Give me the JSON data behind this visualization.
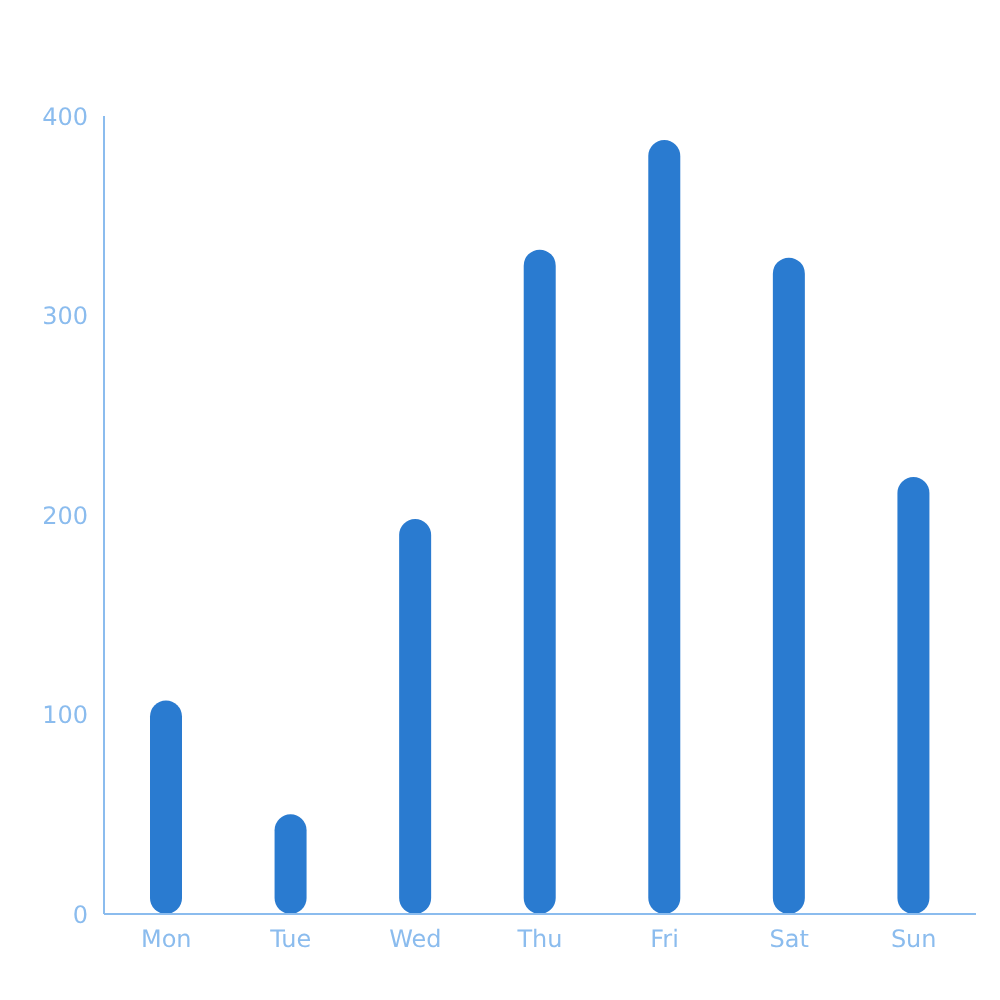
{
  "chart_data": {
    "type": "bar",
    "categories": [
      "Mon",
      "Tue",
      "Wed",
      "Thu",
      "Fri",
      "Sat",
      "Sun"
    ],
    "values": [
      107,
      50,
      198,
      333,
      388,
      329,
      219
    ],
    "color": "#2a7bd0",
    "ylim": [
      0,
      400
    ],
    "yticks": [
      0,
      100,
      200,
      300,
      400
    ],
    "grid": false
  }
}
